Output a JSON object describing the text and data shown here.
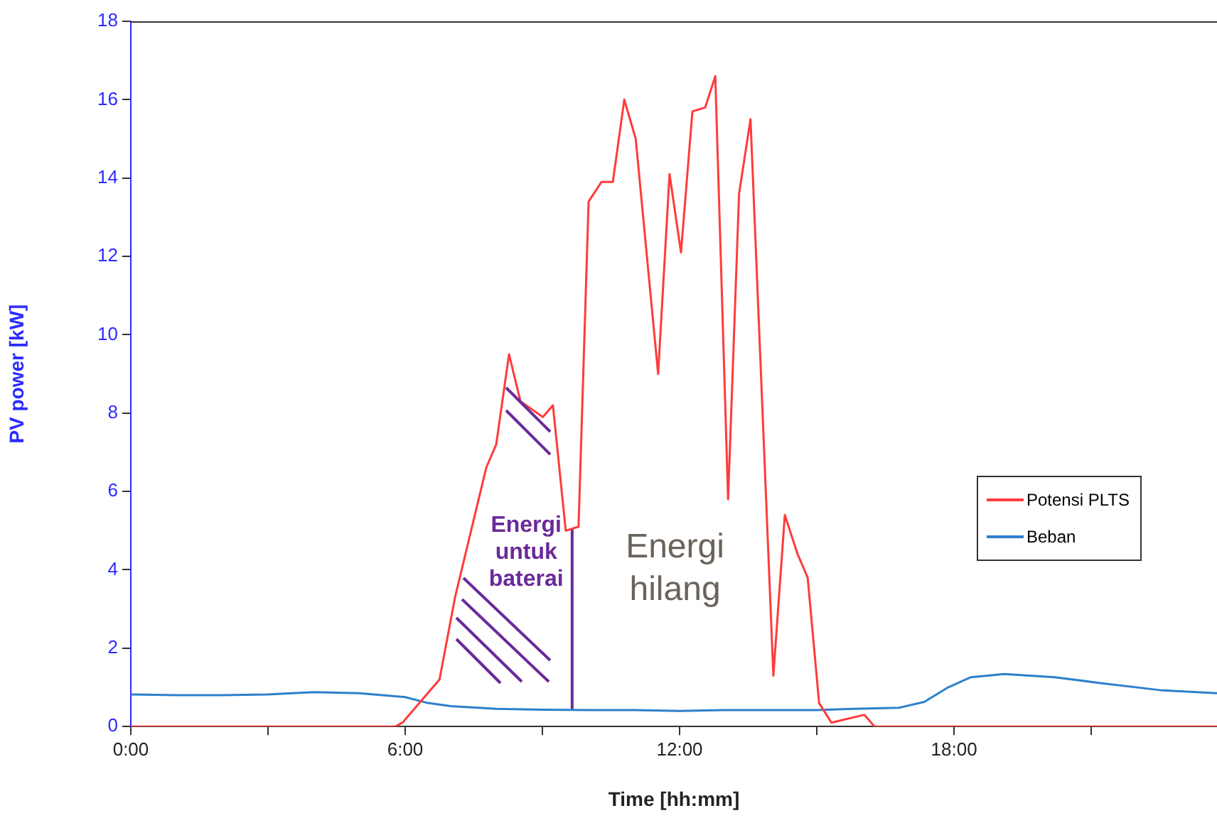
{
  "chart_data": {
    "type": "line",
    "xlabel": "Time [hh:mm]",
    "ylabel": "PV power [kW]",
    "xlim": [
      0,
      23.75
    ],
    "xticks": [
      {
        "value": 0,
        "label": "0:00"
      },
      {
        "value": 3,
        "label": null
      },
      {
        "value": 6,
        "label": "6:00"
      },
      {
        "value": 9,
        "label": null
      },
      {
        "value": 12,
        "label": "12:00"
      },
      {
        "value": 15,
        "label": null
      },
      {
        "value": 18,
        "label": "18:00"
      },
      {
        "value": 21,
        "label": null
      }
    ],
    "ylim": [
      0,
      18
    ],
    "yticks": [
      0,
      2,
      4,
      6,
      8,
      10,
      12,
      14,
      16,
      18
    ],
    "grid": false,
    "legend": "right",
    "marker": "none",
    "line_style": "solid",
    "series": [
      {
        "name": "Potensi PLTS",
        "color": "#ff3b3b",
        "x": [
          0,
          5.78,
          5.94,
          6.75,
          7.09,
          7.77,
          7.99,
          8.27,
          8.52,
          9.01,
          9.23,
          9.51,
          9.79,
          10.01,
          10.29,
          10.54,
          10.79,
          11.04,
          11.53,
          11.78,
          12.03,
          12.28,
          12.56,
          12.78,
          13.06,
          13.3,
          13.55,
          14.05,
          14.3,
          14.58,
          14.8,
          15.05,
          15.32,
          16.04,
          16.26,
          23.75
        ],
        "values": [
          0,
          0,
          0.1,
          1.2,
          3.3,
          6.6,
          7.2,
          9.5,
          8.3,
          7.9,
          8.2,
          5,
          5.1,
          13.4,
          13.9,
          13.9,
          16,
          15,
          9,
          14.1,
          12.1,
          15.7,
          15.8,
          16.6,
          5.8,
          13.6,
          15.5,
          1.3,
          5.4,
          4.4,
          3.8,
          0.6,
          0.1,
          0.3,
          0,
          0
        ]
      },
      {
        "name": "Beban",
        "color": "#2e7fcc",
        "x": [
          0,
          1,
          2,
          3,
          4,
          5,
          5.5,
          6,
          6.5,
          7,
          8,
          9,
          10,
          11,
          12,
          13,
          14,
          15,
          15.8,
          16.8,
          17.35,
          17.87,
          18.37,
          19.1,
          20.2,
          21.2,
          22.5,
          23.75
        ],
        "values": [
          0.82,
          0.8,
          0.8,
          0.82,
          0.88,
          0.85,
          0.8,
          0.75,
          0.6,
          0.52,
          0.45,
          0.43,
          0.42,
          0.42,
          0.4,
          0.42,
          0.42,
          0.42,
          0.45,
          0.48,
          0.63,
          1,
          1.26,
          1.34,
          1.26,
          1.11,
          0.93,
          0.85
        ]
      },
      {
        "color": "#6a2a9a",
        "x": [
          9.65,
          9.65
        ],
        "values": [
          0.42,
          5.05
        ]
      }
    ],
    "annotations": [
      "Energi untuk baterai",
      "Energi hilang"
    ]
  }
}
